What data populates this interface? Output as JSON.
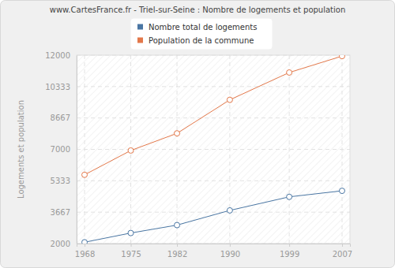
{
  "chart_data": {
    "type": "line",
    "title": "www.CartesFrance.fr - Triel-sur-Seine : Nombre de logements et population",
    "y_label": "Logements et population",
    "x": [
      1968,
      1975,
      1982,
      1990,
      1999,
      2007
    ],
    "series": [
      {
        "name": "Nombre total de logements",
        "color": "#4a76a3",
        "marker": "circle",
        "values": [
          2070,
          2560,
          2980,
          3760,
          4480,
          4800
        ]
      },
      {
        "name": "Population de la commune",
        "color": "#e3784a",
        "marker": "circle",
        "values": [
          5650,
          6940,
          7850,
          9630,
          11080,
          11950
        ]
      }
    ],
    "xlim": [
      1966.8,
      2008.2
    ],
    "xticks": [
      1968,
      1975,
      1982,
      1990,
      1999,
      2007
    ],
    "ylim": [
      2000,
      12000
    ],
    "yticks": [
      2000,
      3667,
      5333,
      7000,
      8667,
      10333,
      12000
    ],
    "grid": true,
    "legend": "top"
  }
}
